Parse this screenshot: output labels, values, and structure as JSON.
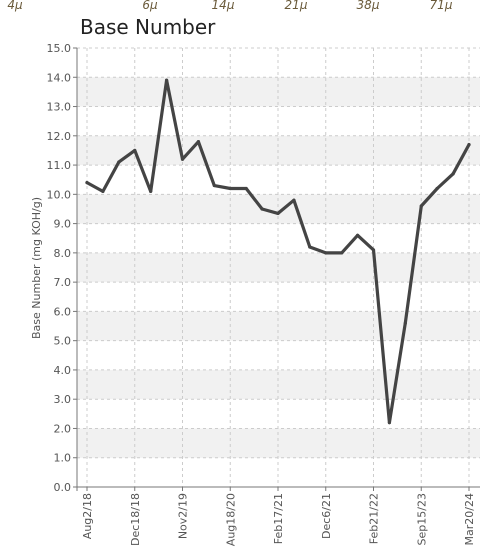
{
  "top_labels": [
    "4μ",
    "6μ",
    "14μ",
    "21μ",
    "38μ",
    "71μ"
  ],
  "chart_data": {
    "type": "line",
    "title": "Base Number",
    "ylabel": "Base Number (mg KOH/g)",
    "xlabel": "",
    "ylim": [
      0,
      15
    ],
    "yticks": [
      "0.0",
      "1.0",
      "2.0",
      "3.0",
      "4.0",
      "5.0",
      "6.0",
      "7.0",
      "8.0",
      "9.0",
      "10.0",
      "11.0",
      "12.0",
      "13.0",
      "14.0",
      "15.0"
    ],
    "xtick_labels": [
      "Aug2/18",
      "Dec18/18",
      "Nov2/19",
      "Aug18/20",
      "Feb17/21",
      "Dec6/21",
      "Feb21/22",
      "Sep15/23",
      "Mar20/24"
    ],
    "grid": true,
    "colors": {
      "line": "#444444",
      "band": "#f1f1f1",
      "grid": "#cccccc"
    },
    "series": [
      {
        "values": [
          10.4,
          10.1,
          11.1,
          11.5,
          10.1,
          13.9,
          11.2,
          11.8,
          10.3,
          10.2,
          10.2,
          9.5,
          9.35,
          9.8,
          8.2,
          8.0,
          8.0,
          8.6,
          8.1,
          2.2,
          5.6,
          9.6,
          10.2,
          10.7,
          11.7
        ]
      }
    ]
  }
}
